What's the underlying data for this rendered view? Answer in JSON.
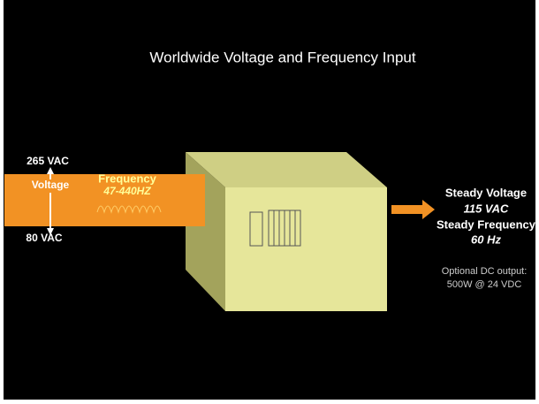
{
  "title": "Worldwide Voltage and Frequency Input",
  "input": {
    "max_voltage": "265 VAC",
    "min_voltage": "80 VAC",
    "voltage_label": "Voltage",
    "frequency_label": "Frequency",
    "frequency_range": "47-440HZ"
  },
  "output": {
    "voltage_label": "Steady Voltage",
    "voltage": "115 VAC",
    "frequency_label": "Steady Frequency",
    "frequency": "60 Hz",
    "dc_note": "Optional DC output:",
    "dc_spec": "500W @ 24 VDC"
  }
}
